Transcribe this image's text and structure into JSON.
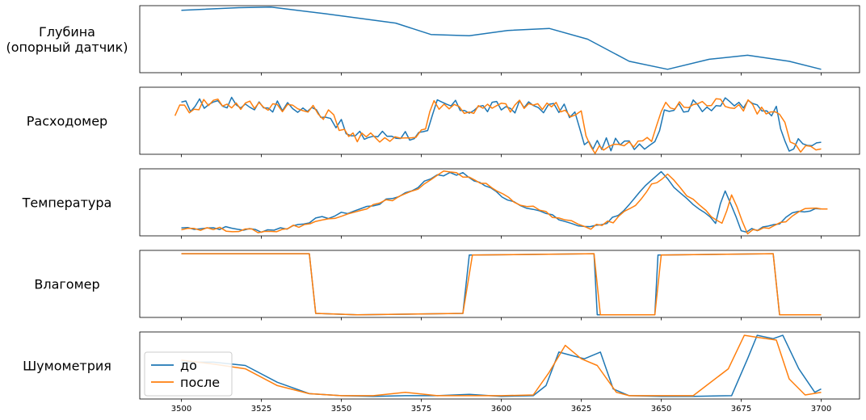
{
  "chart_data": {
    "type": "line",
    "xlim": [
      3487,
      3712
    ],
    "xticks": [
      3500,
      3525,
      3550,
      3575,
      3600,
      3625,
      3650,
      3675,
      3700
    ],
    "colors": {
      "before": "#1f77b4",
      "after": "#ff7f0e"
    },
    "legend": {
      "placement": "lower-left (bottom panel)",
      "entries": [
        "до",
        "после"
      ]
    },
    "panels": [
      {
        "ylabel": [
          "Глубина",
          "(опорный датчик)"
        ],
        "ylim": [
          0,
          1
        ],
        "series": [
          {
            "color": "before",
            "x": [
              3500,
              3518,
              3528,
              3545,
              3567,
              3578,
              3590,
              3602,
              3615,
              3627,
              3640,
              3652,
              3665,
              3677,
              3690,
              3700
            ],
            "y": [
              0.93,
              0.97,
              0.98,
              0.88,
              0.74,
              0.57,
              0.55,
              0.63,
              0.66,
              0.5,
              0.17,
              0.05,
              0.2,
              0.26,
              0.17,
              0.05
            ]
          }
        ]
      },
      {
        "ylabel": [
          "Расходомер"
        ],
        "ylim": [
          0,
          1
        ],
        "series": [
          {
            "color": "before",
            "x": [
              3500,
              3510,
              3520,
              3530,
              3538,
              3545,
              3550,
              3553,
              3560,
              3570,
              3577,
              3580,
              3590,
              3600,
              3610,
              3618,
              3623,
              3626,
              3630,
              3640,
              3648,
              3651,
              3660,
              3670,
              3680,
              3686,
              3690,
              3700
            ],
            "y": [
              0.7,
              0.78,
              0.75,
              0.72,
              0.68,
              0.62,
              0.42,
              0.25,
              0.28,
              0.3,
              0.27,
              0.75,
              0.68,
              0.7,
              0.72,
              0.68,
              0.6,
              0.12,
              0.15,
              0.14,
              0.2,
              0.7,
              0.72,
              0.75,
              0.72,
              0.65,
              0.12,
              0.18
            ]
          },
          {
            "color": "after",
            "x": [
              3498,
              3510,
              3520,
              3530,
              3538,
              3546,
              3551,
              3555,
              3562,
              3570,
              3575,
              3579,
              3590,
              3600,
              3610,
              3620,
              3625,
              3628,
              3632,
              3640,
              3647,
              3650,
              3660,
              3670,
              3680,
              3687,
              3692,
              3700
            ],
            "y": [
              0.65,
              0.8,
              0.72,
              0.75,
              0.66,
              0.6,
              0.38,
              0.22,
              0.27,
              0.25,
              0.3,
              0.78,
              0.66,
              0.7,
              0.74,
              0.66,
              0.58,
              0.1,
              0.13,
              0.12,
              0.22,
              0.68,
              0.74,
              0.78,
              0.7,
              0.62,
              0.1,
              0.08
            ]
          }
        ]
      },
      {
        "ylabel": [
          "Температура"
        ],
        "ylim": [
          0,
          1
        ],
        "series": [
          {
            "color": "before",
            "x": [
              3500,
              3512,
              3525,
              3533,
              3540,
              3548,
              3556,
              3564,
              3572,
              3580,
              3588,
              3595,
              3602,
              3610,
              3618,
              3626,
              3633,
              3640,
              3645,
              3650,
              3656,
              3662,
              3667,
              3670,
              3675,
              3680,
              3687,
              3693,
              3700
            ],
            "y": [
              0.12,
              0.12,
              0.08,
              0.12,
              0.22,
              0.3,
              0.4,
              0.52,
              0.68,
              0.92,
              0.92,
              0.75,
              0.55,
              0.4,
              0.25,
              0.12,
              0.2,
              0.45,
              0.72,
              0.95,
              0.65,
              0.4,
              0.2,
              0.7,
              0.08,
              0.08,
              0.2,
              0.38,
              0.4
            ]
          },
          {
            "color": "after",
            "x": [
              3500,
              3512,
              3528,
              3535,
              3542,
              3550,
              3558,
              3566,
              3574,
              3582,
              3590,
              3597,
              3604,
              3612,
              3620,
              3628,
              3635,
              3642,
              3647,
              3652,
              3658,
              3664,
              3669,
              3672,
              3677,
              3682,
              3689,
              3695,
              3702
            ],
            "y": [
              0.12,
              0.1,
              0.06,
              0.14,
              0.2,
              0.32,
              0.42,
              0.55,
              0.7,
              0.95,
              0.88,
              0.72,
              0.52,
              0.38,
              0.22,
              0.12,
              0.22,
              0.48,
              0.75,
              0.92,
              0.6,
              0.35,
              0.18,
              0.6,
              0.06,
              0.1,
              0.22,
              0.4,
              0.4
            ]
          }
        ]
      },
      {
        "ylabel": [
          "Влагомер"
        ],
        "ylim": [
          0,
          1
        ],
        "series": [
          {
            "color": "before",
            "x": [
              3500,
              3540,
              3542,
              3555,
              3588,
              3590,
              3629,
              3630,
              3648,
              3649,
              3685,
              3687,
              3700
            ],
            "y": [
              0.95,
              0.95,
              0.06,
              0.04,
              0.06,
              0.93,
              0.95,
              0.04,
              0.04,
              0.93,
              0.95,
              0.04,
              0.04
            ]
          },
          {
            "color": "after",
            "x": [
              3500,
              3540,
              3542,
              3555,
              3588,
              3591,
              3629,
              3631,
              3648,
              3650,
              3685,
              3687,
              3700
            ],
            "y": [
              0.95,
              0.95,
              0.06,
              0.04,
              0.06,
              0.93,
              0.95,
              0.04,
              0.04,
              0.93,
              0.95,
              0.04,
              0.04
            ]
          }
        ]
      },
      {
        "ylabel": [
          "Шумометрия"
        ],
        "ylim": [
          0,
          1
        ],
        "series": [
          {
            "color": "before",
            "x": [
              3500,
              3510,
              3520,
              3530,
              3540,
              3550,
              3560,
              3570,
              3580,
              3590,
              3600,
              3610,
              3614,
              3618,
              3622,
              3626,
              3631,
              3635,
              3640,
              3650,
              3660,
              3672,
              3677,
              3680,
              3685,
              3688,
              3693,
              3698,
              3700
            ],
            "y": [
              0.55,
              0.55,
              0.5,
              0.25,
              0.08,
              0.05,
              0.04,
              0.05,
              0.05,
              0.07,
              0.04,
              0.05,
              0.2,
              0.7,
              0.65,
              0.6,
              0.7,
              0.15,
              0.05,
              0.04,
              0.04,
              0.05,
              0.6,
              0.95,
              0.9,
              0.95,
              0.45,
              0.1,
              0.15
            ]
          },
          {
            "color": "after",
            "x": [
              3500,
              3510,
              3520,
              3530,
              3540,
              3550,
              3560,
              3570,
              3580,
              3590,
              3600,
              3610,
              3615,
              3620,
              3625,
              3630,
              3636,
              3640,
              3650,
              3660,
              3671,
              3676,
              3680,
              3686,
              3690,
              3695,
              3700
            ],
            "y": [
              0.58,
              0.52,
              0.45,
              0.2,
              0.08,
              0.05,
              0.05,
              0.1,
              0.05,
              0.05,
              0.05,
              0.06,
              0.4,
              0.8,
              0.6,
              0.5,
              0.1,
              0.05,
              0.05,
              0.05,
              0.45,
              0.95,
              0.92,
              0.88,
              0.3,
              0.06,
              0.1
            ]
          }
        ]
      }
    ]
  }
}
